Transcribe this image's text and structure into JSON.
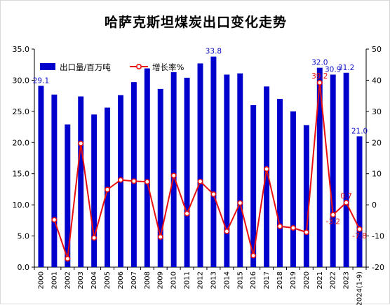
{
  "chart_data": {
    "type": "bar+line",
    "title": "哈萨克斯坦煤炭出口变化走势",
    "categories": [
      "2000",
      "2001",
      "2002",
      "2003",
      "2004",
      "2005",
      "2006",
      "2007",
      "2008",
      "2009",
      "2010",
      "2011",
      "2012",
      "2013",
      "2014",
      "2015",
      "2016",
      "2017",
      "2018",
      "2019",
      "2020",
      "2021",
      "2022",
      "2023",
      "2024(1-9)"
    ],
    "series": [
      {
        "name": "出口量/百万吨",
        "type": "bar",
        "axis": "left",
        "color": "#0000cc",
        "values": [
          29.1,
          27.7,
          22.9,
          27.4,
          24.5,
          25.6,
          27.6,
          29.7,
          31.9,
          28.6,
          31.3,
          30.4,
          32.7,
          33.8,
          30.9,
          31.1,
          26.0,
          29.0,
          27.0,
          25.0,
          22.8,
          32.0,
          30.9,
          31.2,
          21.0
        ]
      },
      {
        "name": "增长率%",
        "type": "line",
        "axis": "right",
        "color": "#e81010",
        "values": [
          null,
          -4.8,
          -17.3,
          19.7,
          -10.6,
          4.9,
          8.0,
          7.6,
          7.4,
          -10.3,
          9.4,
          -2.8,
          7.5,
          3.4,
          -8.5,
          0.6,
          -16.3,
          11.5,
          -6.9,
          -7.4,
          -8.8,
          39.2,
          -3.2,
          0.7,
          -7.8
        ]
      }
    ],
    "bar_data_labels": [
      {
        "index": 0,
        "text": "29.1"
      },
      {
        "index": 13,
        "text": "33.8"
      },
      {
        "index": 21,
        "text": "32.0"
      },
      {
        "index": 22,
        "text": "30.9"
      },
      {
        "index": 23,
        "text": "31.2"
      },
      {
        "index": 24,
        "text": "21.0"
      }
    ],
    "line_data_labels": [
      {
        "index": 21,
        "text": "39.2"
      },
      {
        "index": 22,
        "text": "-3.2"
      },
      {
        "index": 23,
        "text": "0.7"
      },
      {
        "index": 24,
        "text": "-7.8"
      }
    ],
    "y_left": {
      "min": 0,
      "max": 35,
      "step": 5,
      "decimals": 1
    },
    "y_right": {
      "min": -20,
      "max": 50,
      "step": 10,
      "decimals": 0
    },
    "legend": {
      "placement": "top-left"
    },
    "grid": false
  }
}
